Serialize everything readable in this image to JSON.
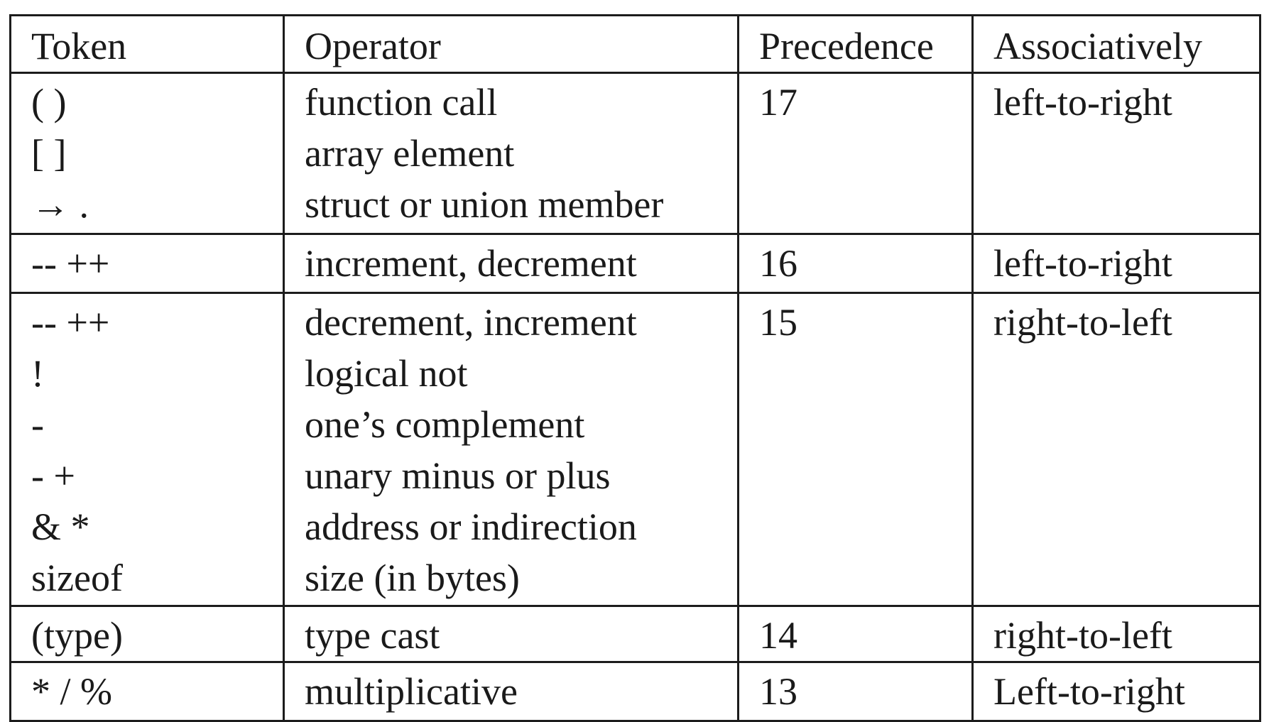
{
  "table": {
    "headers": {
      "token": "Token",
      "operator": "Operator",
      "precedence": "Precedence",
      "associativity": "Associatively"
    },
    "groups": [
      {
        "tokens": [
          "( )",
          "[ ]",
          "→ ."
        ],
        "operators": [
          "function call",
          "array element",
          "struct or union member"
        ],
        "precedence": "17",
        "associativity": "left-to-right"
      },
      {
        "tokens": [
          "-- ++"
        ],
        "operators": [
          "increment, decrement"
        ],
        "precedence": "16",
        "associativity": "left-to-right"
      },
      {
        "tokens": [
          "-- ++",
          "!",
          "-",
          "- +",
          "& *",
          "sizeof"
        ],
        "operators": [
          "decrement, increment",
          "logical not",
          "one’s complement",
          "unary minus or plus",
          "address or indirection",
          "size (in bytes)"
        ],
        "precedence": "15",
        "associativity": "right-to-left"
      },
      {
        "tokens": [
          "(type)"
        ],
        "operators": [
          "type cast"
        ],
        "precedence": "14",
        "associativity": "right-to-left"
      },
      {
        "tokens": [
          "* / %"
        ],
        "operators": [
          "multiplicative"
        ],
        "precedence": "13",
        "associativity": "Left-to-right"
      }
    ]
  }
}
